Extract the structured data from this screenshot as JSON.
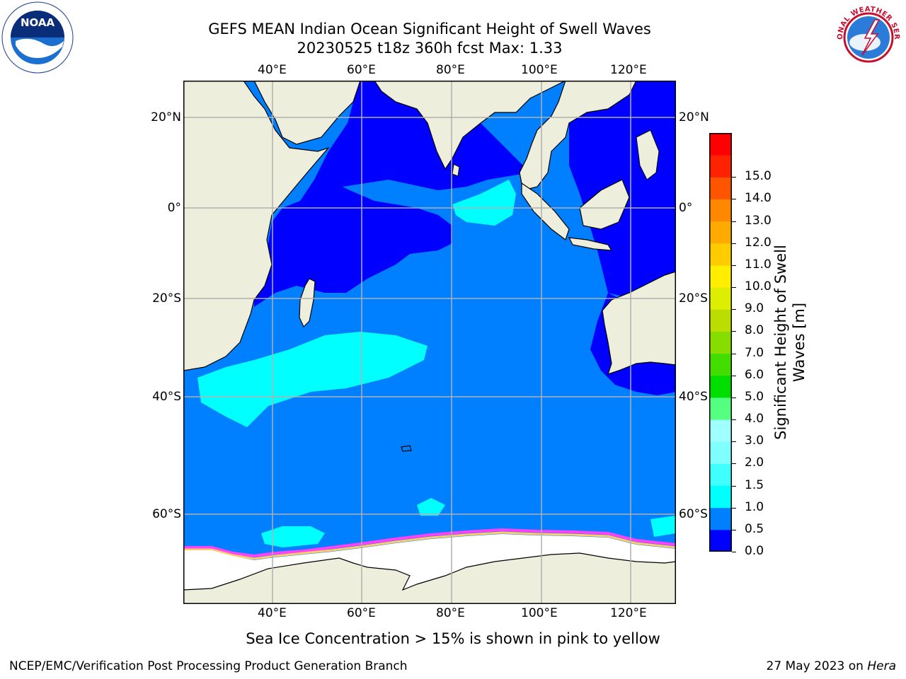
{
  "header": {
    "title_line1": "GEFS MEAN Indian Ocean Significant Height of Swell Waves",
    "title_line2": "20230525 t18z 360h fcst   Max: 1.33"
  },
  "logos": {
    "left": {
      "text": "NOAA",
      "icon": "noaa-logo-icon"
    },
    "right": {
      "text": "NATIONAL WEATHER SERVICE",
      "icon": "nws-logo-icon"
    }
  },
  "map": {
    "lon_labels": [
      "40°E",
      "60°E",
      "80°E",
      "100°E",
      "120°E"
    ],
    "lat_labels_left": [
      "20°N",
      "0°",
      "20°S",
      "40°S",
      "60°S"
    ],
    "lat_labels_right": [
      "20°N",
      "0°",
      "20°S",
      "40°S",
      "60°S"
    ],
    "colors": {
      "land": "#eeeedd",
      "ocean_dark": "#0000ff",
      "ocean_mid": "#0080ff",
      "ocean_light": "#00ffff",
      "ice": "#ffffff",
      "grid": "#b0b0b0"
    }
  },
  "colorbar": {
    "label_line1": "Significant Height of Swell",
    "label_line2": "Waves [m]",
    "ticks": [
      "0.0",
      "0.5",
      "1.0",
      "1.5",
      "2.0",
      "3.0",
      "4.0",
      "5.0",
      "6.0",
      "7.0",
      "8.0",
      "9.0",
      "10.0",
      "11.0",
      "12.0",
      "13.0",
      "14.0",
      "15.0"
    ],
    "colors": [
      "#0000ff",
      "#0080ff",
      "#00ffff",
      "#40ffff",
      "#80ffff",
      "#a0ffff",
      "#55ff80",
      "#00dd00",
      "#44dd00",
      "#88dd00",
      "#bbdd00",
      "#ddee00",
      "#ffee00",
      "#ffcc00",
      "#ffaa00",
      "#ff8800",
      "#ff5500",
      "#ff2200",
      "#ff0000"
    ]
  },
  "caption": "Sea Ice Concentration > 15% is shown in pink to yellow",
  "footer": {
    "left": "NCEP/EMC/Verification Post Processing Product Generation Branch",
    "right_date": "27 May 2023 on ",
    "right_host": "Hera"
  }
}
